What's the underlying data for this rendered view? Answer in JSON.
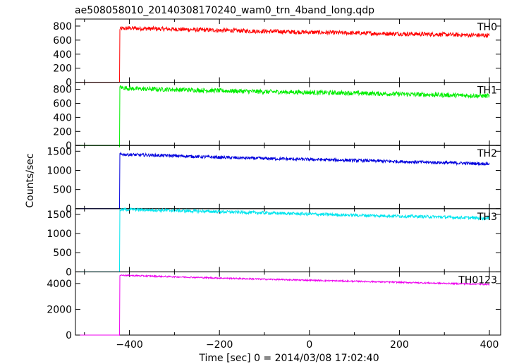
{
  "chart_data": {
    "type": "line",
    "title": "ae508058010_20140308170240_wam0_trn_4band_long.qdp",
    "xlabel": "Time [sec] 0 = 2014/03/08 17:02:40",
    "ylabel": "Counts/sec",
    "xlim": [
      -520,
      425
    ],
    "xticks": [
      -400,
      -200,
      0,
      200,
      400
    ],
    "xtick_labels": [
      "−400",
      "−200",
      "0",
      "200",
      "400"
    ],
    "panels": [
      {
        "name": "TH0",
        "color": "#ff0000",
        "ylim": [
          0,
          900
        ],
        "yticks": [
          0,
          200,
          400,
          600,
          800
        ],
        "ytick_labels": [
          "0",
          "200",
          "400",
          "600",
          "800"
        ],
        "series": [
          {
            "x": -510,
            "y": 0
          },
          {
            "x": -422,
            "y": 0
          },
          {
            "x": -422,
            "y": 760
          },
          {
            "x": -400,
            "y": 770
          },
          {
            "x": -300,
            "y": 755
          },
          {
            "x": -200,
            "y": 740
          },
          {
            "x": -100,
            "y": 725
          },
          {
            "x": 0,
            "y": 712
          },
          {
            "x": 100,
            "y": 700
          },
          {
            "x": 200,
            "y": 690
          },
          {
            "x": 300,
            "y": 680
          },
          {
            "x": 400,
            "y": 665
          }
        ],
        "noise": 30
      },
      {
        "name": "TH1",
        "color": "#00ee00",
        "ylim": [
          0,
          900
        ],
        "yticks": [
          0,
          200,
          400,
          600,
          800
        ],
        "ytick_labels": [
          "0",
          "200",
          "400",
          "600",
          "800"
        ],
        "series": [
          {
            "x": -510,
            "y": 0
          },
          {
            "x": -422,
            "y": 0
          },
          {
            "x": -422,
            "y": 830
          },
          {
            "x": -400,
            "y": 810
          },
          {
            "x": -300,
            "y": 795
          },
          {
            "x": -200,
            "y": 780
          },
          {
            "x": -100,
            "y": 765
          },
          {
            "x": 0,
            "y": 755
          },
          {
            "x": 100,
            "y": 745
          },
          {
            "x": 200,
            "y": 732
          },
          {
            "x": 300,
            "y": 718
          },
          {
            "x": 400,
            "y": 705
          }
        ],
        "noise": 32
      },
      {
        "name": "TH2",
        "color": "#0000dd",
        "ylim": [
          0,
          1650
        ],
        "yticks": [
          0,
          500,
          1000,
          1500
        ],
        "ytick_labels": [
          "0",
          "500",
          "1000",
          "1500"
        ],
        "series": [
          {
            "x": -510,
            "y": 0
          },
          {
            "x": -422,
            "y": 0
          },
          {
            "x": -422,
            "y": 1420
          },
          {
            "x": -400,
            "y": 1410
          },
          {
            "x": -300,
            "y": 1380
          },
          {
            "x": -200,
            "y": 1340
          },
          {
            "x": -100,
            "y": 1310
          },
          {
            "x": 0,
            "y": 1285
          },
          {
            "x": 100,
            "y": 1260
          },
          {
            "x": 200,
            "y": 1230
          },
          {
            "x": 300,
            "y": 1200
          },
          {
            "x": 400,
            "y": 1170
          }
        ],
        "noise": 40
      },
      {
        "name": "TH3",
        "color": "#00e5ee",
        "ylim": [
          0,
          1650
        ],
        "yticks": [
          0,
          500,
          1000,
          1500
        ],
        "ytick_labels": [
          "0",
          "500",
          "1000",
          "1500"
        ],
        "series": [
          {
            "x": -510,
            "y": 0
          },
          {
            "x": -422,
            "y": 0
          },
          {
            "x": -422,
            "y": 1620
          },
          {
            "x": -400,
            "y": 1630
          },
          {
            "x": -300,
            "y": 1600
          },
          {
            "x": -200,
            "y": 1570
          },
          {
            "x": -100,
            "y": 1540
          },
          {
            "x": 0,
            "y": 1510
          },
          {
            "x": 100,
            "y": 1480
          },
          {
            "x": 200,
            "y": 1455
          },
          {
            "x": 300,
            "y": 1430
          },
          {
            "x": 400,
            "y": 1400
          }
        ],
        "noise": 40
      },
      {
        "name": "TH0123",
        "color": "#ee00ee",
        "ylim": [
          0,
          4900
        ],
        "yticks": [
          0,
          2000,
          4000
        ],
        "ytick_labels": [
          "0",
          "2000",
          "4000"
        ],
        "series": [
          {
            "x": -510,
            "y": 0
          },
          {
            "x": -422,
            "y": 0
          },
          {
            "x": -422,
            "y": 4650
          },
          {
            "x": -400,
            "y": 4620
          },
          {
            "x": -300,
            "y": 4520
          },
          {
            "x": -200,
            "y": 4420
          },
          {
            "x": -100,
            "y": 4330
          },
          {
            "x": 0,
            "y": 4250
          },
          {
            "x": 100,
            "y": 4170
          },
          {
            "x": 200,
            "y": 4090
          },
          {
            "x": 300,
            "y": 4010
          },
          {
            "x": 400,
            "y": 3930
          }
        ],
        "noise": 55
      }
    ]
  }
}
